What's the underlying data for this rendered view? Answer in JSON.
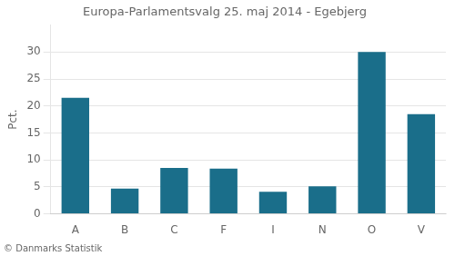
{
  "chart_data": {
    "type": "bar",
    "title": "Europa-Parlamentsvalg 25. maj 2014 - Egebjerg",
    "categories": [
      "A",
      "B",
      "C",
      "F",
      "I",
      "N",
      "O",
      "V"
    ],
    "values": [
      21.5,
      4.7,
      8.5,
      8.4,
      4.1,
      5.1,
      30.0,
      18.5
    ],
    "color": "#1a6e8a",
    "ylabel": "Pct.",
    "annotations": [
      "© Danmarks Statistik"
    ],
    "ylim": [
      0,
      35
    ],
    "yticks": [
      0,
      5,
      10,
      15,
      20,
      25,
      30
    ],
    "grid": true
  }
}
